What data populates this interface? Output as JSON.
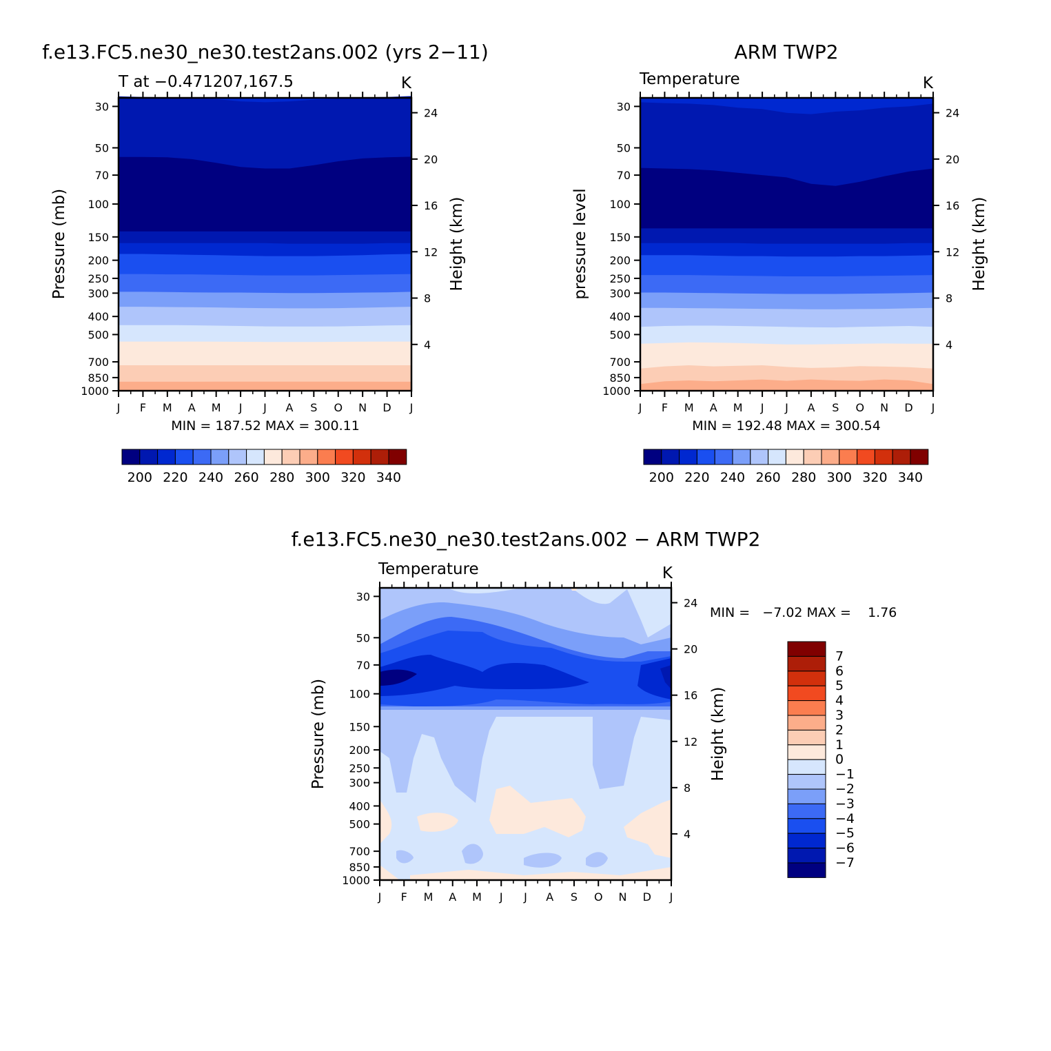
{
  "chart_data": [
    {
      "type": "heatmap",
      "title": "f.e13.FC5.ne30_ne30.test2ans.002 (yrs 2−11)",
      "subtitle_left": "T at −0.471207,167.5",
      "subtitle_right": "K",
      "ylabel": "Pressure (mb)",
      "ylabel_right": "Height (km)",
      "x_ticks": [
        "J",
        "F",
        "M",
        "A",
        "M",
        "J",
        "J",
        "A",
        "S",
        "O",
        "N",
        "D",
        "J"
      ],
      "y_ticks": [
        30,
        50,
        70,
        100,
        150,
        200,
        250,
        300,
        400,
        500,
        700,
        850,
        1000
      ],
      "height_ticks": [
        24,
        20,
        16,
        12,
        8,
        4
      ],
      "stats": "MIN = 187.52 MAX = 300.11",
      "min": 187.52,
      "max": 300.11,
      "colorbar_labels": [
        "200",
        "220",
        "240",
        "260",
        "280",
        "300",
        "320",
        "340"
      ],
      "contours": {
        "levels": [
          190,
          200,
          210,
          220,
          230,
          240,
          250,
          260,
          270,
          280,
          290,
          300
        ],
        "boundaries": [
          [
            26.5,
            26.7,
            26.8,
            27.0,
            27.4,
            28.2,
            28.5,
            28.2,
            27.6,
            27.2,
            26.8,
            26.7,
            26.4
          ],
          [
            56,
            56,
            56.2,
            57.5,
            60.2,
            63.3,
            64.5,
            64.5,
            62,
            59,
            57,
            56.2,
            55.8
          ],
          [
            140,
            140,
            140,
            140,
            140,
            140,
            140,
            140,
            140,
            140,
            140,
            140,
            140
          ],
          [
            162,
            162,
            162,
            162,
            162,
            162,
            162,
            163,
            163,
            163,
            163,
            162,
            162
          ],
          [
            185,
            185,
            186,
            187,
            188,
            189,
            190,
            190,
            190,
            189,
            188,
            186,
            185
          ],
          [
            237,
            237,
            238,
            238,
            239,
            240,
            241,
            241,
            241,
            240,
            239,
            238,
            237
          ],
          [
            295,
            295,
            296,
            297,
            298,
            298,
            299,
            300,
            300,
            299,
            298,
            297,
            295
          ],
          [
            355,
            355,
            356,
            357,
            358,
            360,
            361,
            362,
            362,
            361,
            359,
            357,
            355
          ],
          [
            445,
            445,
            445,
            446,
            448,
            450,
            452,
            453,
            453,
            452,
            450,
            447,
            445
          ],
          [
            545,
            545,
            545,
            545,
            546,
            547,
            548,
            548,
            548,
            547,
            546,
            545,
            545
          ],
          [
            730,
            730,
            730,
            730,
            730,
            730,
            730,
            730,
            730,
            730,
            730,
            730,
            730
          ],
          [
            895,
            895,
            895,
            895,
            893,
            893,
            893,
            893,
            893,
            893,
            893,
            895,
            895
          ]
        ]
      }
    },
    {
      "type": "heatmap",
      "title": "ARM TWP2",
      "subtitle_left": "Temperature",
      "subtitle_right": "K",
      "ylabel": "pressure level",
      "ylabel_right": "Height (km)",
      "x_ticks": [
        "J",
        "F",
        "M",
        "A",
        "M",
        "J",
        "J",
        "A",
        "S",
        "O",
        "N",
        "D",
        "J"
      ],
      "y_ticks": [
        30,
        50,
        70,
        100,
        150,
        200,
        250,
        300,
        400,
        500,
        700,
        850,
        1000
      ],
      "height_ticks": [
        24,
        20,
        16,
        12,
        8,
        4
      ],
      "stats": "MIN = 192.48 MAX = 300.54",
      "min": 192.48,
      "max": 300.54,
      "colorbar_labels": [
        "200",
        "220",
        "240",
        "260",
        "280",
        "300",
        "320",
        "340"
      ],
      "contours": {
        "levels": [
          190,
          200,
          210,
          220,
          230,
          240,
          250,
          260,
          270,
          280,
          290,
          300
        ],
        "boundaries": [
          [
            28.5,
            28.8,
            29,
            29.5,
            30.5,
            31,
            32.5,
            33,
            32,
            31.5,
            30.5,
            30,
            29
          ],
          [
            64,
            64.5,
            65,
            66,
            68,
            70,
            72,
            78,
            80,
            76,
            71,
            67,
            64.5
          ],
          [
            135,
            135,
            135,
            135,
            135,
            135,
            135,
            135,
            135,
            135,
            135,
            135,
            135
          ],
          [
            162,
            162,
            162,
            162,
            162,
            163,
            163,
            163,
            163,
            163,
            163,
            162,
            162
          ],
          [
            188,
            188,
            188,
            189,
            190,
            190,
            191,
            191,
            191,
            190,
            190,
            189,
            188
          ],
          [
            240,
            240,
            240,
            241,
            242,
            243,
            244,
            244,
            244,
            243,
            242,
            241,
            240
          ],
          [
            298,
            298,
            299,
            300,
            301,
            302,
            303,
            303,
            303,
            302,
            301,
            300,
            298
          ],
          [
            360,
            360,
            361,
            362,
            363,
            364,
            365,
            366,
            366,
            365,
            364,
            362,
            360
          ],
          [
            455,
            450,
            448,
            448,
            450,
            452,
            455,
            457,
            458,
            455,
            452,
            450,
            455
          ],
          [
            560,
            555,
            550,
            552,
            555,
            560,
            565,
            565,
            562,
            560,
            558,
            560,
            560
          ],
          [
            760,
            740,
            730,
            740,
            735,
            730,
            745,
            755,
            750,
            738,
            742,
            748,
            760
          ],
          [
            920,
            890,
            880,
            890,
            880,
            870,
            885,
            870,
            880,
            885,
            870,
            880,
            920
          ]
        ]
      }
    },
    {
      "type": "heatmap",
      "title": "f.e13.FC5.ne30_ne30.test2ans.002 − ARM TWP2",
      "subtitle_left": "Temperature",
      "subtitle_right": "K",
      "ylabel": "Pressure (mb)",
      "ylabel_right": "Height (km)",
      "x_ticks": [
        "J",
        "F",
        "M",
        "A",
        "M",
        "J",
        "J",
        "A",
        "S",
        "O",
        "N",
        "D",
        "J"
      ],
      "y_ticks": [
        30,
        50,
        70,
        100,
        150,
        200,
        250,
        300,
        400,
        500,
        700,
        850,
        1000
      ],
      "height_ticks": [
        24,
        20,
        16,
        12,
        8,
        4
      ],
      "stats": "MIN =   −7.02 MAX =    1.76",
      "min": -7.02,
      "max": 1.76,
      "colorbar_labels": [
        "7",
        "6",
        "5",
        "4",
        "3",
        "2",
        "1",
        "0",
        "−1",
        "−2",
        "−3",
        "−4",
        "−5",
        "−6",
        "−7"
      ]
    }
  ],
  "colors": {
    "palette": [
      "#000080",
      "#0018b0",
      "#0028d0",
      "#1a4ff0",
      "#3c6af5",
      "#7b9ff9",
      "#afc5fb",
      "#d6e6fd",
      "#fde9dc",
      "#fccdb5",
      "#fcad8a",
      "#fb7d4f",
      "#f14a20",
      "#d2300c",
      "#ad1e08",
      "#800000"
    ],
    "diff_palette": [
      "#000080",
      "#0018b0",
      "#0028d0",
      "#1a4ff0",
      "#3c6af5",
      "#7b9ff9",
      "#afc5fb",
      "#d6e6fd",
      "#fde9dc",
      "#fccdb5",
      "#fcad8a",
      "#fb7d4f",
      "#f14a20",
      "#d2300c",
      "#ad1e08",
      "#800000"
    ]
  }
}
